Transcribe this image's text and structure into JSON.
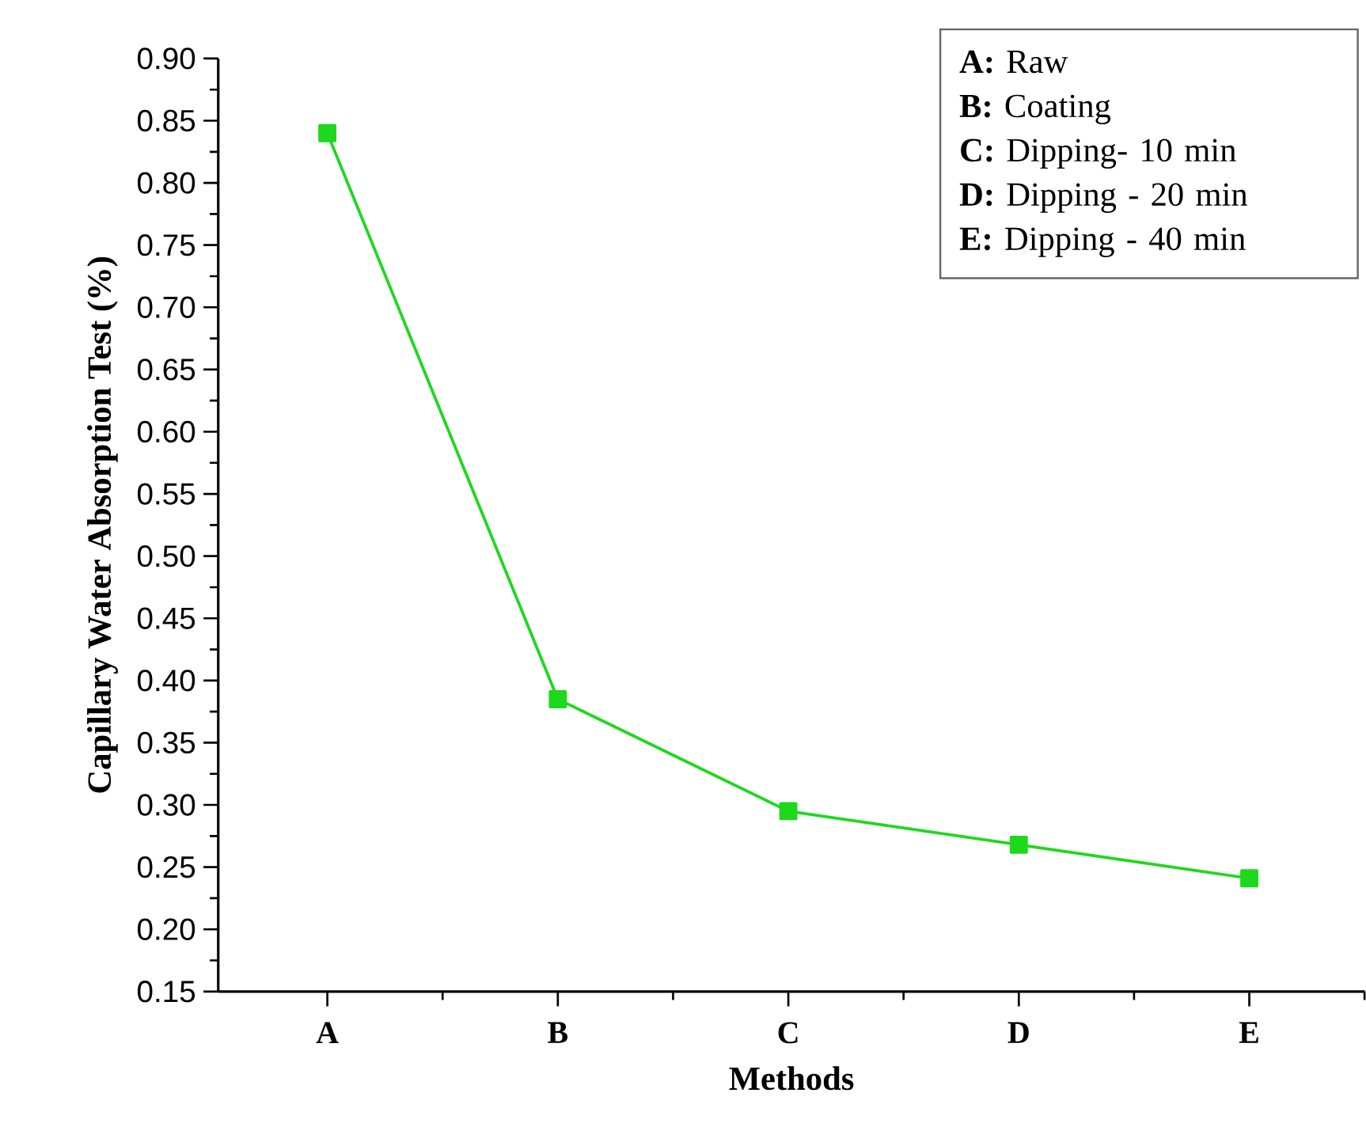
{
  "chart_data": {
    "type": "line",
    "xlabel": "Methods",
    "ylabel": "Capillary Water Absorption Test (%)",
    "categories": [
      "A",
      "B",
      "C",
      "D",
      "E"
    ],
    "series": [
      {
        "color": "#1ed81e",
        "values": [
          0.84,
          0.385,
          0.295,
          0.268,
          0.241
        ]
      }
    ],
    "ylim": [
      0.15,
      0.9
    ],
    "yticks": [
      {
        "value": 0.15,
        "label": "0.15"
      },
      {
        "value": 0.2,
        "label": "0.20"
      },
      {
        "value": 0.25,
        "label": "0.25"
      },
      {
        "value": 0.3,
        "label": "0.30"
      },
      {
        "value": 0.35,
        "label": "0.35"
      },
      {
        "value": 0.4,
        "label": "0.40"
      },
      {
        "value": 0.45,
        "label": "0.45"
      },
      {
        "value": 0.5,
        "label": "0.50"
      },
      {
        "value": 0.55,
        "label": "0.55"
      },
      {
        "value": 0.6,
        "label": "0.60"
      },
      {
        "value": 0.65,
        "label": "0.65"
      },
      {
        "value": 0.7,
        "label": "0.70"
      },
      {
        "value": 0.75,
        "label": "0.75"
      },
      {
        "value": 0.8,
        "label": "0.80"
      },
      {
        "value": 0.85,
        "label": "0.85"
      },
      {
        "value": 0.9,
        "label": "0.90"
      }
    ],
    "marker": "square",
    "line_style": "solid",
    "annotations": [
      "**A:** Raw",
      "**B:** Coating",
      "**C:** Dipping- 10 min",
      "**D:** Dipping - 20 min",
      "**E:** Dipping - 40 min"
    ]
  }
}
